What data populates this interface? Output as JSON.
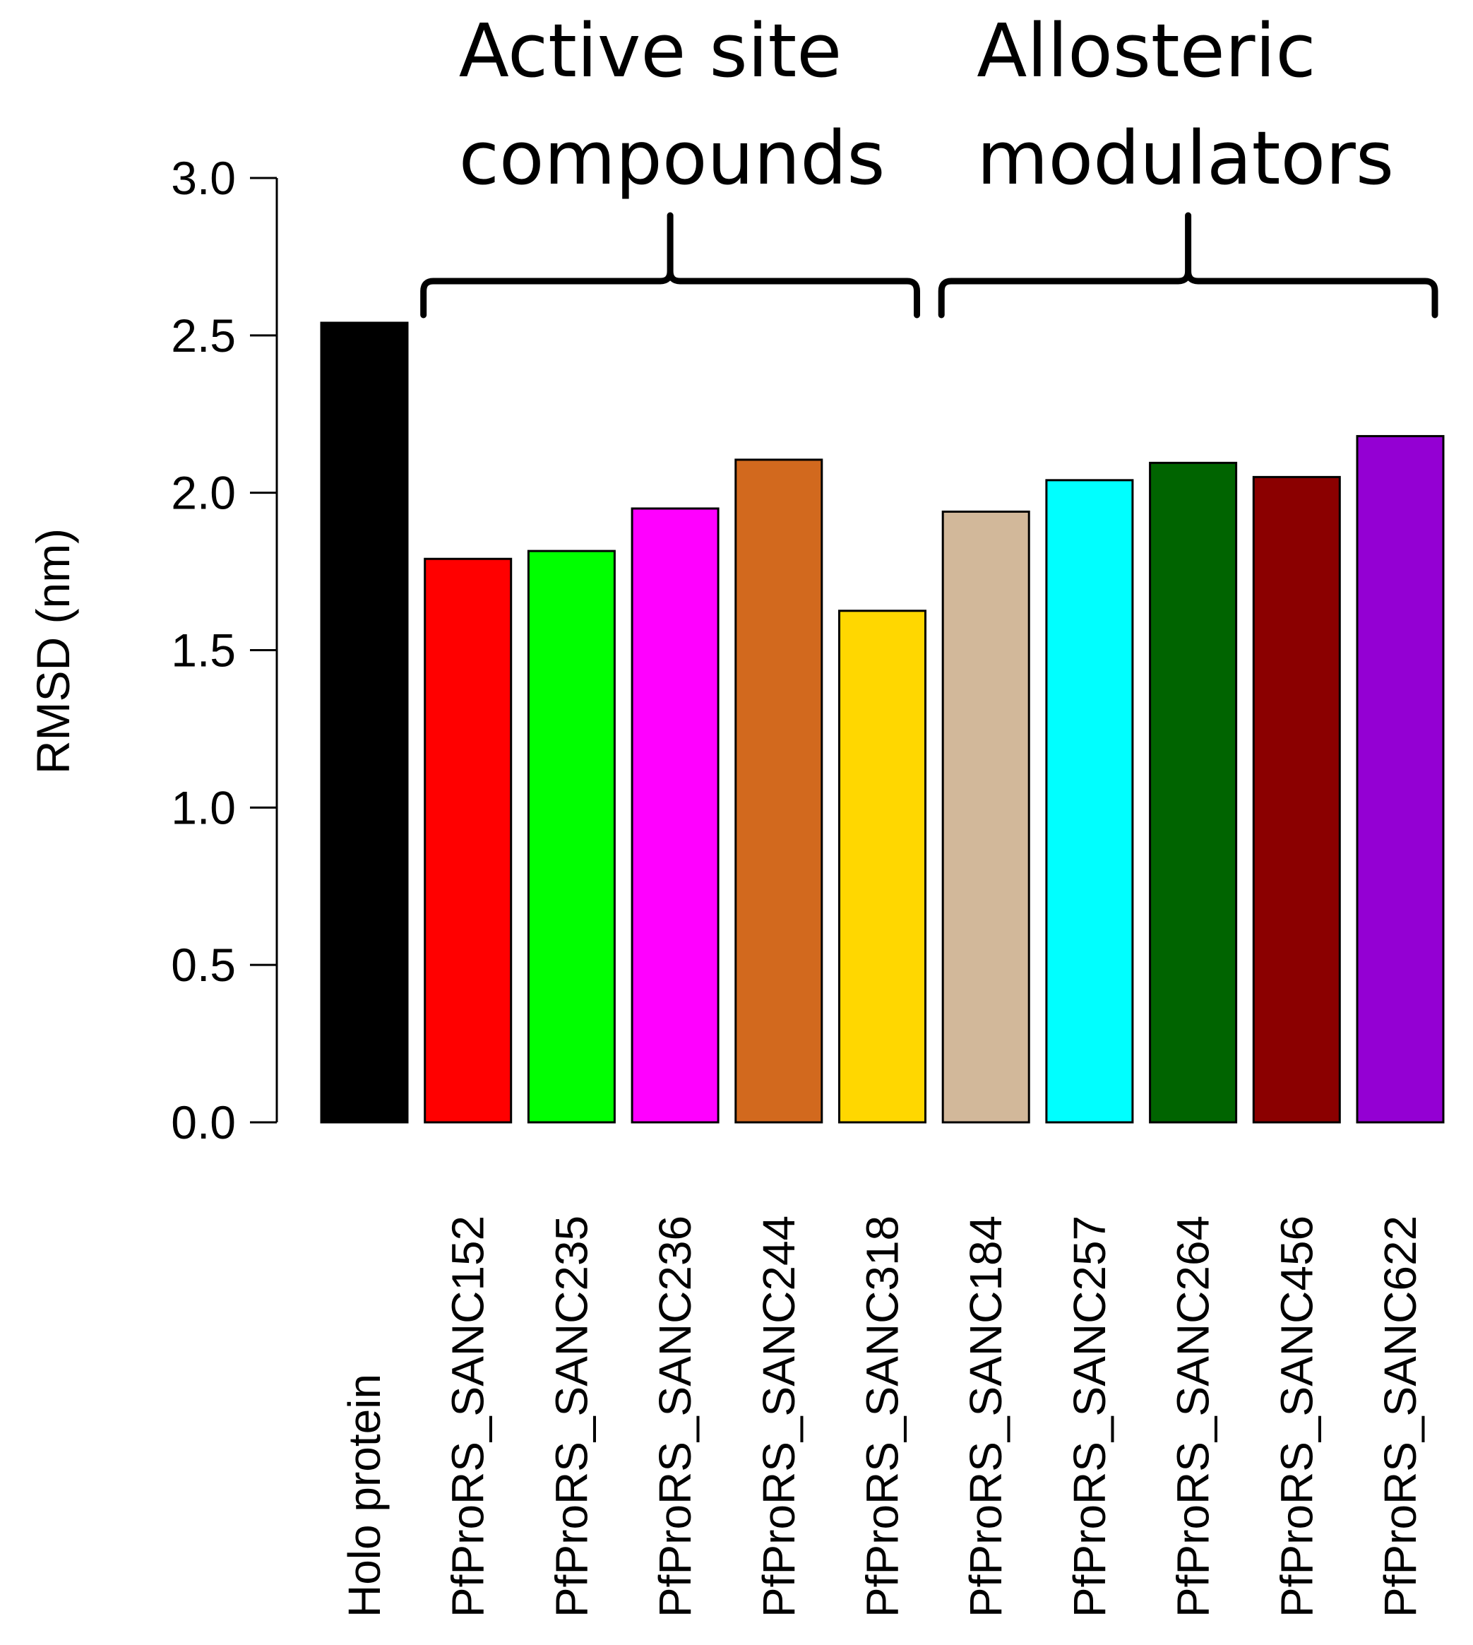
{
  "chart_data": {
    "type": "bar",
    "title": "",
    "xlabel": "",
    "ylabel": "RMSD (nm)",
    "ylim": [
      0,
      3.0
    ],
    "yticks": [
      "0.0",
      "0.5",
      "1.0",
      "1.5",
      "2.0",
      "2.5",
      "3.0"
    ],
    "categories": [
      "Holo protein",
      "PfProRS_SANC152",
      "PfProRS_SANC235",
      "PfProRS_SANC236",
      "PfProRS_SANC244",
      "PfProRS_SANC318",
      "PfProRS_SANC184",
      "PfProRS_SANC257",
      "PfProRS_SANC264",
      "PfProRS_SANC456",
      "PfProRS_SANC622"
    ],
    "values": [
      2.54,
      1.79,
      1.815,
      1.95,
      2.105,
      1.625,
      1.94,
      2.04,
      2.095,
      2.05,
      2.18
    ],
    "colors": [
      "#000000",
      "#ff0000",
      "#00ff00",
      "#ff00ff",
      "#d2691e",
      "#ffd700",
      "#d2b89a",
      "#00ffff",
      "#006400",
      "#8b0000",
      "#9400d3"
    ],
    "groups": [
      {
        "label_lines": [
          "Active site",
          "compounds"
        ],
        "first": 1,
        "last": 5
      },
      {
        "label_lines": [
          "Allosteric",
          "modulators"
        ],
        "first": 6,
        "last": 10
      }
    ],
    "grid": false,
    "legend": "none"
  }
}
